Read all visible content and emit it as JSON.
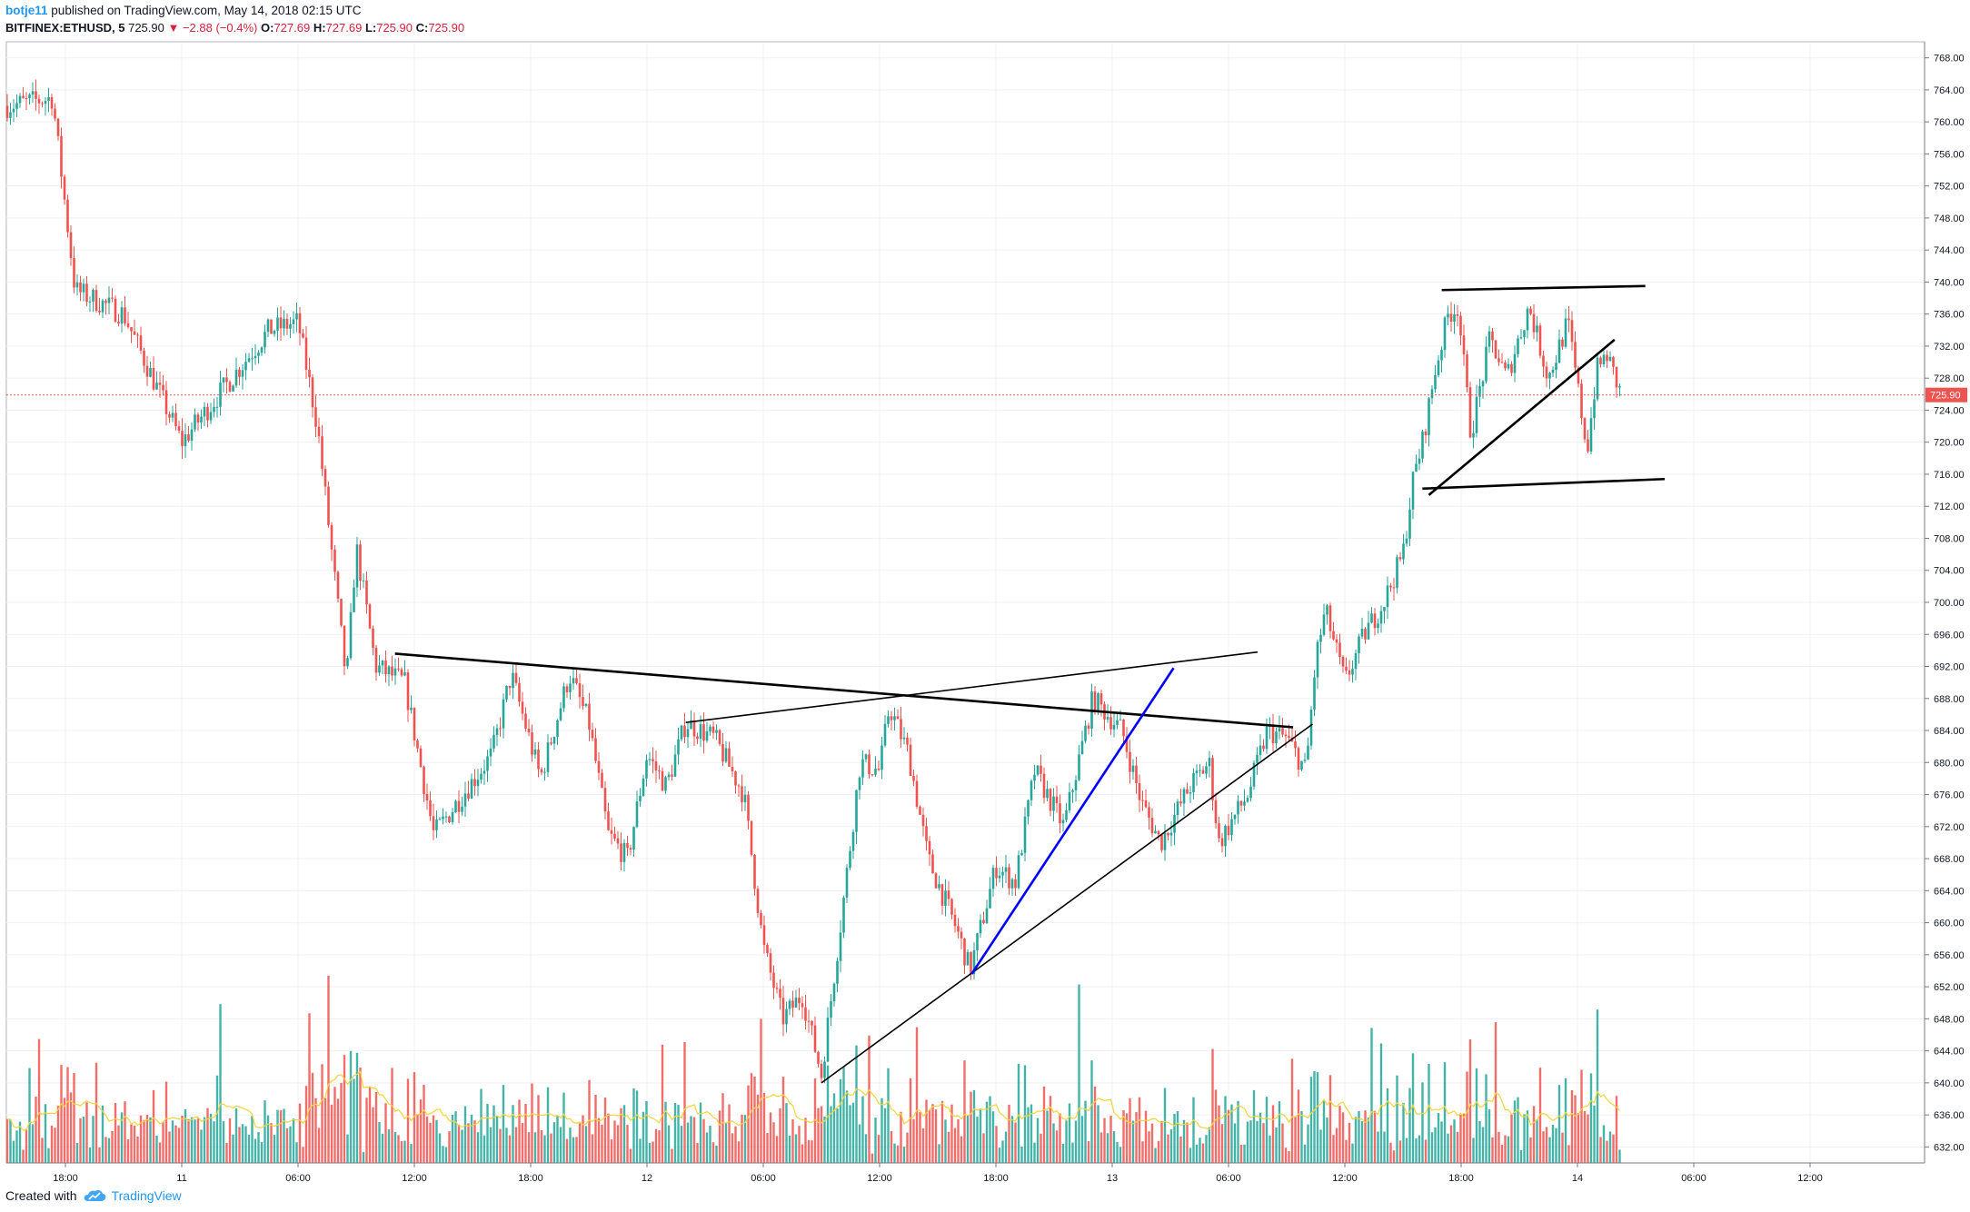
{
  "header": {
    "author": "botje11",
    "published_text": "published on TradingView.com, May 14, 2018 02:15 UTC",
    "symbol": "BITFINEX:ETHUSD, 5",
    "last": "725.90",
    "change": "▼ −2.88 (−0.4%)",
    "o_label": "O:",
    "o": "727.69",
    "h_label": "H:",
    "h": "727.69",
    "l_label": "L:",
    "l": "725.90",
    "c_label": "C:",
    "c": "725.90"
  },
  "footer": {
    "created_with": "Created with",
    "brand": "TradingView"
  },
  "colors": {
    "up": "#26a69a",
    "down": "#ef5350",
    "volume_ma": "#f5d33b",
    "price_line": "#ef5350",
    "trend_black": "#000000",
    "trend_blue": "#0000ff"
  },
  "chart_data": {
    "type": "candlestick",
    "title": "",
    "xlabel": "",
    "ylabel": "",
    "ylim": [
      630,
      770
    ],
    "current_price": 725.9,
    "current_price_label": "725.90",
    "y_ticks": [
      "768.00",
      "764.00",
      "760.00",
      "756.00",
      "752.00",
      "748.00",
      "744.00",
      "740.00",
      "736.00",
      "732.00",
      "728.00",
      "724.00",
      "720.00",
      "716.00",
      "712.00",
      "708.00",
      "704.00",
      "700.00",
      "696.00",
      "692.00",
      "688.00",
      "684.00",
      "680.00",
      "676.00",
      "672.00",
      "668.00",
      "664.00",
      "660.00",
      "656.00",
      "652.00",
      "648.00",
      "644.00",
      "640.00",
      "636.00",
      "632.00"
    ],
    "x_ticks": [
      "18:00",
      "11",
      "06:00",
      "12:00",
      "18:00",
      "12",
      "06:00",
      "12:00",
      "18:00",
      "13",
      "06:00",
      "12:00",
      "18:00",
      "14",
      "06:00",
      "12:00"
    ],
    "grid": true,
    "price_path": [
      {
        "t": "May 10 15:00",
        "p": 762
      },
      {
        "t": "May 10 17:20",
        "p": 763
      },
      {
        "t": "May 10 18:30",
        "p": 739
      },
      {
        "t": "May 10 21:00",
        "p": 736
      },
      {
        "t": "May 11 00:00",
        "p": 720
      },
      {
        "t": "May 11 04:30",
        "p": 734
      },
      {
        "t": "May 11 06:00",
        "p": 735
      },
      {
        "t": "May 11 07:00",
        "p": 722
      },
      {
        "t": "May 11 08:30",
        "p": 690
      },
      {
        "t": "May 11 09:00",
        "p": 707
      },
      {
        "t": "May 11 10:00",
        "p": 692
      },
      {
        "t": "May 11 11:30",
        "p": 690
      },
      {
        "t": "May 11 13:00",
        "p": 671
      },
      {
        "t": "May 11 14:30",
        "p": 676
      },
      {
        "t": "May 11 16:00",
        "p": 681
      },
      {
        "t": "May 11 17:00",
        "p": 691
      },
      {
        "t": "May 11 18:30",
        "p": 678
      },
      {
        "t": "May 11 20:00",
        "p": 691
      },
      {
        "t": "May 11 21:00",
        "p": 685
      },
      {
        "t": "May 11 22:00",
        "p": 671
      },
      {
        "t": "May 11 23:00",
        "p": 668
      },
      {
        "t": "May 12 00:00",
        "p": 681
      },
      {
        "t": "May 12 01:00",
        "p": 677
      },
      {
        "t": "May 12 02:00",
        "p": 685
      },
      {
        "t": "May 12 03:30",
        "p": 683
      },
      {
        "t": "May 12 05:00",
        "p": 676
      },
      {
        "t": "May 12 06:00",
        "p": 657
      },
      {
        "t": "May 12 07:00",
        "p": 648
      },
      {
        "t": "May 12 08:00",
        "p": 651
      },
      {
        "t": "May 12 09:00",
        "p": 641
      },
      {
        "t": "May 12 10:00",
        "p": 660
      },
      {
        "t": "May 12 11:00",
        "p": 680
      },
      {
        "t": "May 12 12:00",
        "p": 679
      },
      {
        "t": "May 12 12:30",
        "p": 687
      },
      {
        "t": "May 12 13:30",
        "p": 681
      },
      {
        "t": "May 12 14:30",
        "p": 668
      },
      {
        "t": "May 12 16:00",
        "p": 659
      },
      {
        "t": "May 12 16:40",
        "p": 654
      },
      {
        "t": "May 12 18:00",
        "p": 667
      },
      {
        "t": "May 12 19:00",
        "p": 665
      },
      {
        "t": "May 12 20:00",
        "p": 679
      },
      {
        "t": "May 12 21:30",
        "p": 672
      },
      {
        "t": "May 12 23:00",
        "p": 688
      },
      {
        "t": "May 13 00:30",
        "p": 684
      },
      {
        "t": "May 13 01:30",
        "p": 675
      },
      {
        "t": "May 13 02:30",
        "p": 670
      },
      {
        "t": "May 13 04:00",
        "p": 677
      },
      {
        "t": "May 13 05:00",
        "p": 680
      },
      {
        "t": "May 13 05:30",
        "p": 670
      },
      {
        "t": "May 13 07:00",
        "p": 676
      },
      {
        "t": "May 13 08:00",
        "p": 684
      },
      {
        "t": "May 13 09:00",
        "p": 683
      },
      {
        "t": "May 13 10:00",
        "p": 679
      },
      {
        "t": "May 13 10:30",
        "p": 693
      },
      {
        "t": "May 13 11:00",
        "p": 699
      },
      {
        "t": "May 13 12:00",
        "p": 690
      },
      {
        "t": "May 13 13:00",
        "p": 696
      },
      {
        "t": "May 13 14:00",
        "p": 700
      },
      {
        "t": "May 13 15:00",
        "p": 706
      },
      {
        "t": "May 13 15:30",
        "p": 715
      },
      {
        "t": "May 13 16:00",
        "p": 720
      },
      {
        "t": "May 13 16:40",
        "p": 729
      },
      {
        "t": "May 13 17:20",
        "p": 736
      },
      {
        "t": "May 13 17:50",
        "p": 737
      },
      {
        "t": "May 13 18:30",
        "p": 721
      },
      {
        "t": "May 13 19:30",
        "p": 733
      },
      {
        "t": "May 13 20:20",
        "p": 728
      },
      {
        "t": "May 13 21:30",
        "p": 737
      },
      {
        "t": "May 13 22:30",
        "p": 728
      },
      {
        "t": "May 13 23:30",
        "p": 735
      },
      {
        "t": "May 14 00:00",
        "p": 727
      },
      {
        "t": "May 14 00:30",
        "p": 719
      },
      {
        "t": "May 14 01:00",
        "p": 729
      },
      {
        "t": "May 14 01:30",
        "p": 731
      },
      {
        "t": "May 14 02:15",
        "p": 725.9
      }
    ],
    "volume_note": "volume histogram with moving average shown at bottom"
  }
}
